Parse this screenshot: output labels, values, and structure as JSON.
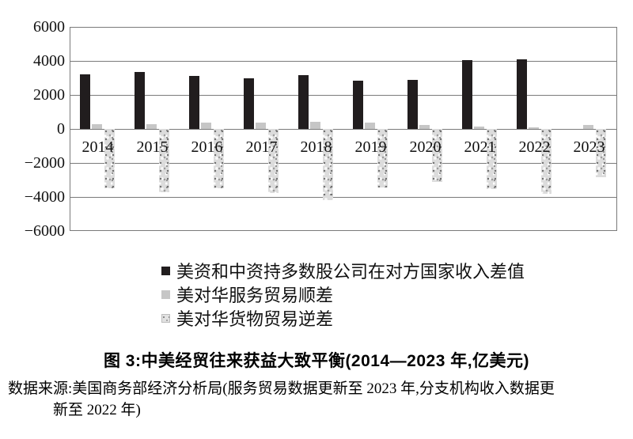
{
  "figure": {
    "caption": "图 3:中美经贸往来获益大致平衡(2014—2023 年,亿美元)",
    "source_line1": "数据来源:美国商务部经济分析局(服务贸易数据更新至 2023 年,分支机构收入数据更",
    "source_line2": "新至 2022 年)"
  },
  "chart_data": {
    "type": "bar",
    "title": "图 3:中美经贸往来获益大致平衡(2014—2023 年,亿美元)",
    "unit": "亿美元",
    "categories": [
      "2014",
      "2015",
      "2016",
      "2017",
      "2018",
      "2019",
      "2020",
      "2021",
      "2022",
      "2023"
    ],
    "series": [
      {
        "name": "美资和中资持多数股公司在对方国家收入差值",
        "style": "solid-black",
        "color": "#211d1e",
        "values": [
          3200,
          3350,
          3100,
          3000,
          3150,
          2850,
          2880,
          4030,
          4100,
          null
        ]
      },
      {
        "name": "美对华服务贸易顺差",
        "style": "solid-gray",
        "color": "#c6c6c6",
        "values": [
          280,
          300,
          370,
          390,
          400,
          360,
          250,
          130,
          90,
          240
        ]
      },
      {
        "name": "美对华货物贸易逆差",
        "style": "speckled-gray",
        "color": "#dcdcdc",
        "values": [
          -3500,
          -3700,
          -3500,
          -3750,
          -4180,
          -3450,
          -3100,
          -3550,
          -3820,
          -2850
        ]
      }
    ],
    "ylim": [
      -6000,
      6000
    ],
    "yticks": [
      6000,
      4000,
      2000,
      0,
      -2000,
      -4000,
      -6000
    ],
    "ytick_labels": [
      "6000",
      "4000",
      "2000",
      "0",
      "−2000",
      "−4000",
      "−6000"
    ],
    "grid": true,
    "legend_position": "below-chart"
  }
}
